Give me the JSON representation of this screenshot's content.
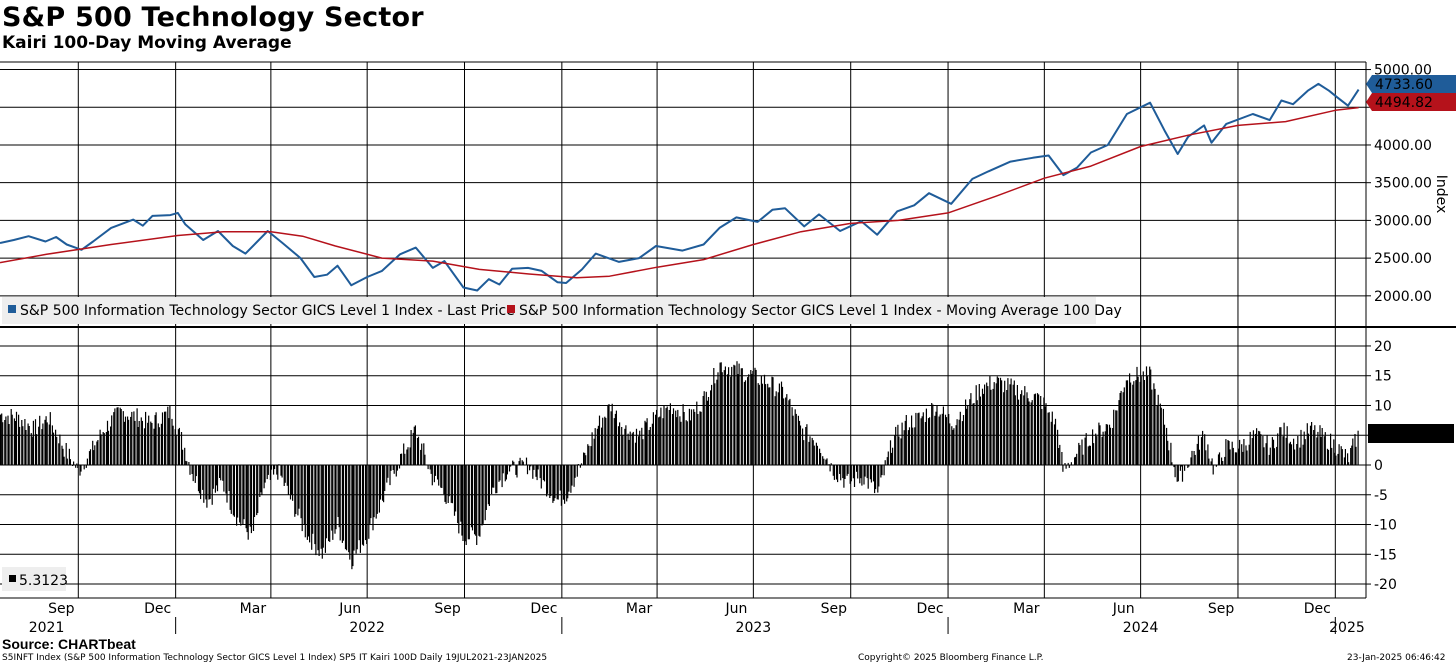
{
  "header": {
    "title": "S&P 500 Technology Sector",
    "subtitle": "Kairi 100-Day Moving Average"
  },
  "footer": {
    "source": "Source: CHARTbeat",
    "left": "S5INFT Index (S&P 500 Information Technology Sector GICS Level 1 Index) SP5 IT Kairi 100D  Daily 19JUL2021-23JAN2025",
    "center": "Copyright© 2025 Bloomberg Finance L.P.",
    "right": "23-Jan-2025 06:46:42"
  },
  "chart_data": [
    {
      "type": "line",
      "panel": "top",
      "ylabel": "Index",
      "ylim": [
        1600,
        5100
      ],
      "yticks": [
        2000,
        2500,
        3000,
        3500,
        4000,
        4500,
        5000
      ],
      "ytick_labels": [
        "2000.00",
        "2500.00",
        "3000.00",
        "3500.00",
        "4000.00",
        "4494.82",
        "5000.00"
      ],
      "grid": true,
      "legend_position": "bottom-left",
      "series": [
        {
          "name": "S&P 500 Information Technology Sector GICS Level 1 Index - Last Price",
          "color": "#1f5c99",
          "last_value_label": "4733.60",
          "points": [
            [
              "2021-07-19",
              2700
            ],
            [
              "2021-08-01",
              2740
            ],
            [
              "2021-08-15",
              2790
            ],
            [
              "2021-08-31",
              2720
            ],
            [
              "2021-09-10",
              2780
            ],
            [
              "2021-09-20",
              2680
            ],
            [
              "2021-10-04",
              2610
            ],
            [
              "2021-10-15",
              2720
            ],
            [
              "2021-11-01",
              2900
            ],
            [
              "2021-11-22",
              3010
            ],
            [
              "2021-12-01",
              2930
            ],
            [
              "2021-12-10",
              3060
            ],
            [
              "2021-12-27",
              3070
            ],
            [
              "2022-01-03",
              3100
            ],
            [
              "2022-01-10",
              2950
            ],
            [
              "2022-01-27",
              2740
            ],
            [
              "2022-02-10",
              2860
            ],
            [
              "2022-02-24",
              2660
            ],
            [
              "2022-03-08",
              2560
            ],
            [
              "2022-03-29",
              2860
            ],
            [
              "2022-04-12",
              2700
            ],
            [
              "2022-04-29",
              2500
            ],
            [
              "2022-05-12",
              2250
            ],
            [
              "2022-05-24",
              2280
            ],
            [
              "2022-06-03",
              2400
            ],
            [
              "2022-06-16",
              2140
            ],
            [
              "2022-07-01",
              2250
            ],
            [
              "2022-07-15",
              2330
            ],
            [
              "2022-08-01",
              2550
            ],
            [
              "2022-08-16",
              2640
            ],
            [
              "2022-09-01",
              2370
            ],
            [
              "2022-09-12",
              2460
            ],
            [
              "2022-09-30",
              2110
            ],
            [
              "2022-10-13",
              2070
            ],
            [
              "2022-10-24",
              2220
            ],
            [
              "2022-11-03",
              2150
            ],
            [
              "2022-11-15",
              2360
            ],
            [
              "2022-11-30",
              2370
            ],
            [
              "2022-12-13",
              2330
            ],
            [
              "2022-12-28",
              2180
            ],
            [
              "2023-01-05",
              2170
            ],
            [
              "2023-01-20",
              2350
            ],
            [
              "2023-02-02",
              2560
            ],
            [
              "2023-02-24",
              2450
            ],
            [
              "2023-03-15",
              2500
            ],
            [
              "2023-03-31",
              2660
            ],
            [
              "2023-04-25",
              2600
            ],
            [
              "2023-05-15",
              2680
            ],
            [
              "2023-05-30",
              2900
            ],
            [
              "2023-06-15",
              3040
            ],
            [
              "2023-07-05",
              2980
            ],
            [
              "2023-07-19",
              3140
            ],
            [
              "2023-07-31",
              3160
            ],
            [
              "2023-08-18",
              2920
            ],
            [
              "2023-09-01",
              3080
            ],
            [
              "2023-09-21",
              2860
            ],
            [
              "2023-10-11",
              2990
            ],
            [
              "2023-10-26",
              2810
            ],
            [
              "2023-11-14",
              3120
            ],
            [
              "2023-11-30",
              3200
            ],
            [
              "2023-12-14",
              3360
            ],
            [
              "2024-01-04",
              3220
            ],
            [
              "2024-01-24",
              3550
            ],
            [
              "2024-02-08",
              3650
            ],
            [
              "2024-02-29",
              3780
            ],
            [
              "2024-03-21",
              3830
            ],
            [
              "2024-04-05",
              3860
            ],
            [
              "2024-04-19",
              3600
            ],
            [
              "2024-05-02",
              3700
            ],
            [
              "2024-05-15",
              3900
            ],
            [
              "2024-05-31",
              4000
            ],
            [
              "2024-06-18",
              4410
            ],
            [
              "2024-07-10",
              4560
            ],
            [
              "2024-07-24",
              4180
            ],
            [
              "2024-08-05",
              3880
            ],
            [
              "2024-08-15",
              4110
            ],
            [
              "2024-08-30",
              4260
            ],
            [
              "2024-09-06",
              4030
            ],
            [
              "2024-09-20",
              4280
            ],
            [
              "2024-10-15",
              4410
            ],
            [
              "2024-10-31",
              4330
            ],
            [
              "2024-11-11",
              4590
            ],
            [
              "2024-11-22",
              4540
            ],
            [
              "2024-12-06",
              4720
            ],
            [
              "2024-12-16",
              4810
            ],
            [
              "2024-12-26",
              4720
            ],
            [
              "2025-01-02",
              4640
            ],
            [
              "2025-01-13",
              4520
            ],
            [
              "2025-01-23",
              4733.6
            ]
          ]
        },
        {
          "name": "S&P 500 Information Technology Sector GICS Level 1 Index - Moving Average 100 Day",
          "color": "#b5121b",
          "last_value_label": "4494.82",
          "points": [
            [
              "2021-07-19",
              2440
            ],
            [
              "2021-09-01",
              2550
            ],
            [
              "2021-11-01",
              2680
            ],
            [
              "2022-01-03",
              2800
            ],
            [
              "2022-02-15",
              2850
            ],
            [
              "2022-04-01",
              2850
            ],
            [
              "2022-05-01",
              2790
            ],
            [
              "2022-06-01",
              2660
            ],
            [
              "2022-07-15",
              2500
            ],
            [
              "2022-09-01",
              2460
            ],
            [
              "2022-10-15",
              2350
            ],
            [
              "2022-12-01",
              2290
            ],
            [
              "2023-01-15",
              2240
            ],
            [
              "2023-02-15",
              2260
            ],
            [
              "2023-04-01",
              2380
            ],
            [
              "2023-05-15",
              2480
            ],
            [
              "2023-07-01",
              2680
            ],
            [
              "2023-08-15",
              2850
            ],
            [
              "2023-10-01",
              2960
            ],
            [
              "2023-11-15",
              3000
            ],
            [
              "2024-01-01",
              3100
            ],
            [
              "2024-02-15",
              3320
            ],
            [
              "2024-04-01",
              3560
            ],
            [
              "2024-05-15",
              3720
            ],
            [
              "2024-07-01",
              3980
            ],
            [
              "2024-08-15",
              4130
            ],
            [
              "2024-10-01",
              4260
            ],
            [
              "2024-11-15",
              4310
            ],
            [
              "2025-01-01",
              4460
            ],
            [
              "2025-01-23",
              4494.82
            ]
          ]
        }
      ]
    },
    {
      "type": "bar",
      "panel": "bottom",
      "ylim": [
        -21,
        21
      ],
      "yticks": [
        -20,
        -15,
        -10,
        -5,
        0,
        5,
        10,
        15,
        20
      ],
      "grid": true,
      "legend_position": "bottom-left",
      "series": [
        {
          "name": "5.3123",
          "color": "#000000",
          "last_value_label": "5.3123",
          "points": [
            [
              "2021-07-19",
              8.5
            ],
            [
              "2021-08-05",
              8
            ],
            [
              "2021-08-20",
              6
            ],
            [
              "2021-09-03",
              8
            ],
            [
              "2021-09-17",
              3
            ],
            [
              "2021-10-01",
              -1
            ],
            [
              "2021-10-12",
              2
            ],
            [
              "2021-10-25",
              6
            ],
            [
              "2021-11-10",
              9
            ],
            [
              "2021-11-26",
              8
            ],
            [
              "2021-12-08",
              7
            ],
            [
              "2021-12-28",
              9
            ],
            [
              "2022-01-07",
              4
            ],
            [
              "2022-01-18",
              -2
            ],
            [
              "2022-01-31",
              -6
            ],
            [
              "2022-02-14",
              -3
            ],
            [
              "2022-02-28",
              -9
            ],
            [
              "2022-03-14",
              -12
            ],
            [
              "2022-03-25",
              -4
            ],
            [
              "2022-04-08",
              -1
            ],
            [
              "2022-04-20",
              -6
            ],
            [
              "2022-05-06",
              -12
            ],
            [
              "2022-05-20",
              -15
            ],
            [
              "2022-06-03",
              -10
            ],
            [
              "2022-06-16",
              -16
            ],
            [
              "2022-06-30",
              -12
            ],
            [
              "2022-07-15",
              -6
            ],
            [
              "2022-08-01",
              1
            ],
            [
              "2022-08-16",
              6
            ],
            [
              "2022-08-31",
              -2
            ],
            [
              "2022-09-13",
              -5
            ],
            [
              "2022-09-30",
              -12
            ],
            [
              "2022-10-14",
              -12
            ],
            [
              "2022-10-28",
              -4
            ],
            [
              "2022-11-10",
              -1
            ],
            [
              "2022-11-30",
              0
            ],
            [
              "2022-12-09",
              -2
            ],
            [
              "2022-12-28",
              -6
            ],
            [
              "2023-01-05",
              -5
            ],
            [
              "2023-01-19",
              0
            ],
            [
              "2023-02-02",
              6
            ],
            [
              "2023-02-16",
              10
            ],
            [
              "2023-03-02",
              6
            ],
            [
              "2023-03-15",
              5
            ],
            [
              "2023-03-31",
              8
            ],
            [
              "2023-04-14",
              10
            ],
            [
              "2023-05-01",
              8
            ],
            [
              "2023-05-15",
              11
            ],
            [
              "2023-05-30",
              17
            ],
            [
              "2023-06-15",
              16
            ],
            [
              "2023-06-30",
              15
            ],
            [
              "2023-07-14",
              14
            ],
            [
              "2023-07-31",
              12
            ],
            [
              "2023-08-15",
              6
            ],
            [
              "2023-08-31",
              4
            ],
            [
              "2023-09-15",
              -1
            ],
            [
              "2023-09-28",
              -3
            ],
            [
              "2023-10-13",
              -2
            ],
            [
              "2023-10-27",
              -5
            ],
            [
              "2023-11-09",
              4
            ],
            [
              "2023-11-22",
              7
            ],
            [
              "2023-12-07",
              8
            ],
            [
              "2023-12-20",
              10
            ],
            [
              "2024-01-05",
              7
            ],
            [
              "2024-01-19",
              10
            ],
            [
              "2024-02-01",
              13
            ],
            [
              "2024-02-15",
              14
            ],
            [
              "2024-03-01",
              13
            ],
            [
              "2024-03-15",
              12
            ],
            [
              "2024-03-28",
              11
            ],
            [
              "2024-04-12",
              7
            ],
            [
              "2024-04-19",
              -1
            ],
            [
              "2024-05-02",
              2
            ],
            [
              "2024-05-16",
              5
            ],
            [
              "2024-06-03",
              7
            ],
            [
              "2024-06-18",
              15
            ],
            [
              "2024-07-10",
              15
            ],
            [
              "2024-07-24",
              7
            ],
            [
              "2024-08-05",
              -3
            ],
            [
              "2024-08-19",
              2
            ],
            [
              "2024-08-30",
              5
            ],
            [
              "2024-09-09",
              -1
            ],
            [
              "2024-09-19",
              3
            ],
            [
              "2024-10-03",
              3
            ],
            [
              "2024-10-17",
              5
            ],
            [
              "2024-11-01",
              3
            ],
            [
              "2024-11-11",
              6
            ],
            [
              "2024-11-25",
              4
            ],
            [
              "2024-12-09",
              6
            ],
            [
              "2024-12-18",
              5
            ],
            [
              "2025-01-03",
              3
            ],
            [
              "2025-01-13",
              1
            ],
            [
              "2025-01-23",
              5.3123
            ]
          ]
        }
      ]
    }
  ],
  "x_axis": {
    "month_labels": [
      {
        "label": "Sep",
        "date": "2021-09-15"
      },
      {
        "label": "Dec",
        "date": "2021-12-15"
      },
      {
        "label": "Mar",
        "date": "2022-03-15"
      },
      {
        "label": "Jun",
        "date": "2022-06-15"
      },
      {
        "label": "Sep",
        "date": "2022-09-15"
      },
      {
        "label": "Dec",
        "date": "2022-12-15"
      },
      {
        "label": "Mar",
        "date": "2023-03-15"
      },
      {
        "label": "Jun",
        "date": "2023-06-15"
      },
      {
        "label": "Sep",
        "date": "2023-09-15"
      },
      {
        "label": "Dec",
        "date": "2023-12-15"
      },
      {
        "label": "Mar",
        "date": "2024-03-15"
      },
      {
        "label": "Jun",
        "date": "2024-06-15"
      },
      {
        "label": "Sep",
        "date": "2024-09-15"
      },
      {
        "label": "Dec",
        "date": "2024-12-15"
      }
    ],
    "year_labels": [
      {
        "label": "2021",
        "date": "2021-09-01"
      },
      {
        "label": "2022",
        "date": "2022-07-01"
      },
      {
        "label": "2023",
        "date": "2023-07-01"
      },
      {
        "label": "2024",
        "date": "2024-07-01"
      },
      {
        "label": "2025",
        "date": "2025-01-12"
      }
    ],
    "range": [
      "2021-07-19",
      "2025-01-30"
    ]
  }
}
